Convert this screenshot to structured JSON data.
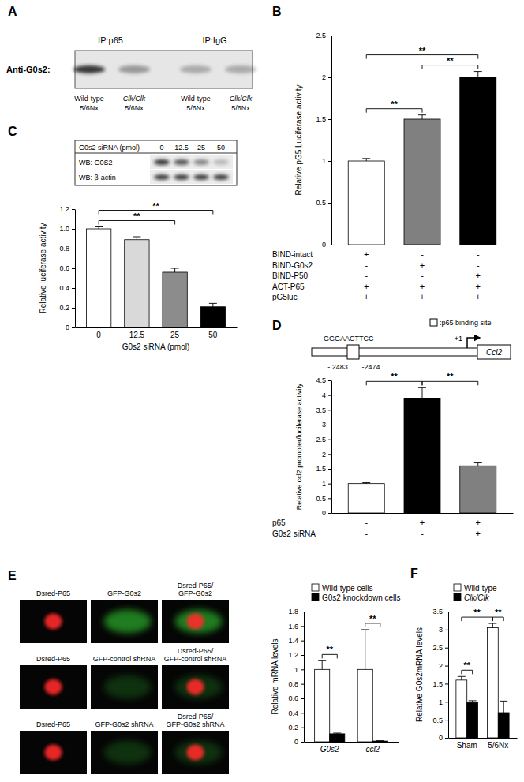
{
  "chart_data": [
    {
      "type": "bar",
      "panel": "B",
      "ylabel": "Relative pG5 Luciferase activity",
      "categories": [
        null,
        null,
        null
      ],
      "values": [
        1.0,
        1.5,
        2.0
      ],
      "errors": [
        0.03,
        0.05,
        0.07
      ],
      "colors": [
        "#ffffff",
        "#808080",
        "#000000"
      ],
      "ylim": [
        0,
        2.5
      ],
      "yticks": [
        0,
        0.5,
        1,
        1.5,
        2,
        2.5
      ],
      "significance": [
        {
          "between": [
            0,
            1
          ],
          "label": "**"
        },
        {
          "between": [
            1,
            2
          ],
          "label": "**"
        },
        {
          "between": [
            0,
            2
          ],
          "label": "**"
        }
      ],
      "table": [
        {
          "label": "BIND-intact",
          "cells": [
            "+",
            "-",
            "-"
          ]
        },
        {
          "label": "BIND-G0s2",
          "cells": [
            "-",
            "+",
            "-"
          ]
        },
        {
          "label": "BIND-P50",
          "cells": [
            "-",
            "-",
            "+"
          ]
        },
        {
          "label": "ACT-P65",
          "cells": [
            "+",
            "+",
            "+"
          ]
        },
        {
          "label": "pG5luc",
          "cells": [
            "+",
            "+",
            "+"
          ]
        }
      ]
    },
    {
      "type": "bar",
      "panel": "C",
      "ylabel": "Relative luciferase activity",
      "xlabel": "G0s2 siRNA (pmol)",
      "categories": [
        "0",
        "12.5",
        "25",
        "50"
      ],
      "values": [
        1.0,
        0.89,
        0.56,
        0.21
      ],
      "errors": [
        0.02,
        0.03,
        0.04,
        0.035
      ],
      "colors": [
        "#ffffff",
        "#d9d9d9",
        "#8c8c8c",
        "#000000"
      ],
      "ylim": [
        0,
        1.2
      ],
      "yticks": [
        0,
        0.2,
        0.4,
        0.6,
        0.8,
        {
          "value": 1,
          "label": "1.0"
        },
        1.2
      ],
      "significance": [
        {
          "between": [
            0,
            2
          ],
          "label": "**"
        },
        {
          "between": [
            0,
            3
          ],
          "label": "**"
        }
      ]
    },
    {
      "type": "bar",
      "panel": "D",
      "ylabel": "Relative ccl2 promoter/luciferase activity",
      "categories": [
        null,
        null,
        null
      ],
      "values": [
        1.0,
        3.9,
        1.6
      ],
      "errors": [
        0.03,
        0.35,
        0.1
      ],
      "colors": [
        "#ffffff",
        "#000000",
        "#808080"
      ],
      "ylim": [
        0,
        4.5
      ],
      "yticks": [
        0,
        0.5,
        1,
        1.5,
        2,
        2.5,
        3,
        3.5,
        4,
        4.5
      ],
      "significance": [
        {
          "between": [
            0,
            1
          ],
          "label": "**"
        },
        {
          "between": [
            1,
            2
          ],
          "label": "**"
        }
      ],
      "table": [
        {
          "label": "p65",
          "cells": [
            "-",
            "+",
            "+"
          ]
        },
        {
          "label": "G0s2 siRNA",
          "cells": [
            "-",
            "-",
            "+"
          ]
        }
      ]
    },
    {
      "type": "bar",
      "ylabel": "Relative mRNA levels",
      "categories": [
        "G0s2",
        "ccl2"
      ],
      "series": [
        {
          "name": "Wild-type cells",
          "color": "#ffffff",
          "values": [
            1.0,
            1.0
          ],
          "errors": [
            0.12,
            0.55
          ]
        },
        {
          "name": "G0s2 knockdown cells",
          "color": "#000000",
          "values": [
            0.11,
            0.01
          ],
          "errors": [
            0.01,
            0.005
          ]
        }
      ],
      "ylim": [
        0,
        1.8
      ],
      "yticks": [
        0,
        0.2,
        0.4,
        0.6,
        0.8,
        1,
        1.2,
        1.4,
        1.6,
        1.8
      ],
      "legend": "top",
      "significance": [
        {
          "between": [
            [
              0,
              0
            ],
            [
              1,
              0
            ]
          ],
          "label": "**"
        },
        {
          "between": [
            [
              0,
              1
            ],
            [
              1,
              1
            ]
          ],
          "label": "**"
        }
      ]
    },
    {
      "type": "bar",
      "panel": "F",
      "ylabel": "Relative G0s2mRNA levels",
      "categories": [
        "Sham",
        "5/6Nx"
      ],
      "series": [
        {
          "name": "Wild-type",
          "color": "#ffffff",
          "values": [
            1.6,
            3.05
          ],
          "errors": [
            0.1,
            0.12
          ]
        },
        {
          "name": "Clk/Clk",
          "color": "#000000",
          "values": [
            0.98,
            0.7
          ],
          "errors": [
            0.05,
            0.32
          ]
        }
      ],
      "ylim": [
        0,
        3.5
      ],
      "yticks": [
        0,
        0.5,
        1,
        1.5,
        2,
        2.5,
        3,
        3.5
      ],
      "legend": "top",
      "significance": [
        {
          "between": [
            [
              0,
              0
            ],
            [
              1,
              0
            ]
          ],
          "label": "**"
        },
        {
          "between": [
            [
              0,
              1
            ],
            [
              1,
              1
            ]
          ],
          "label": "**"
        },
        {
          "between": [
            [
              0,
              0
            ],
            [
              0,
              1
            ]
          ],
          "label": "**"
        }
      ]
    }
  ],
  "panel_a": {
    "panel": "A",
    "ip_labels": [
      "IP:p65",
      "IP:IgG"
    ],
    "antibody": "Anti-G0s2:",
    "lanes": [
      [
        "Wild-type",
        "5/6Nx"
      ],
      [
        "Clk/Clk",
        "5/6Nx"
      ],
      [
        "Wild-type",
        "5/6Nx"
      ],
      [
        "Clk/Clk",
        "5/6Nx"
      ]
    ]
  },
  "blot_c": {
    "header": "G0s2 siRNA (pmol)",
    "doses": [
      "0",
      "12.5",
      "25",
      "50"
    ],
    "rows": [
      "WB: G0S2",
      "WB: β-actin"
    ]
  },
  "diagram_d": {
    "sequence": "GGGAACTTCC",
    "start": "+1",
    "gene": "Ccl2",
    "positions": [
      "- 2483",
      "-2474"
    ],
    "key_label": ":p65  binding site"
  },
  "images_e": {
    "panel": "E",
    "labels": [
      [
        [
          "Dsred-P65"
        ],
        [
          "GFP-G0s2"
        ],
        [
          "Dsred-P65/",
          "GFP-G0s2"
        ]
      ],
      [
        [
          "Dsred-P65"
        ],
        [
          "GFP-control shRNA"
        ],
        [
          "Dsred-P65/",
          "GFP-control shRNA"
        ]
      ],
      [
        [
          "Dsred-P65"
        ],
        [
          "GFP-G0s2 shRNA"
        ],
        [
          "Dsred-P65/",
          "GFP-G0s2 shRNA"
        ]
      ]
    ]
  }
}
